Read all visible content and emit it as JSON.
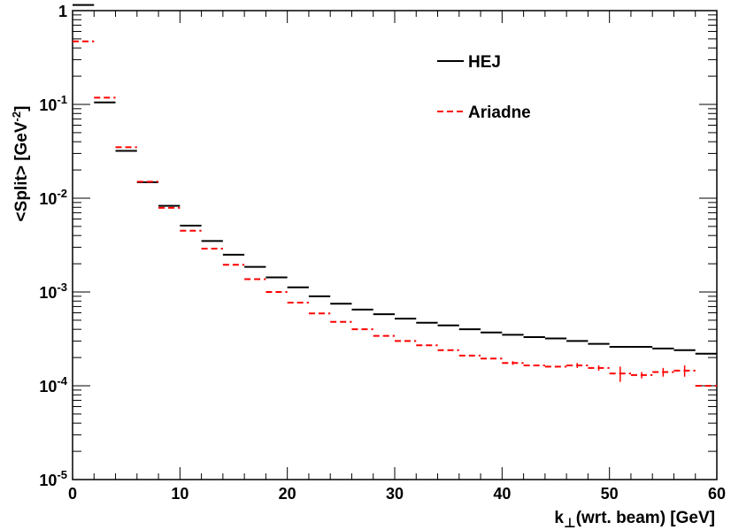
{
  "chart_data": {
    "type": "line",
    "style": "histogram-steps",
    "xlabel": "k",
    "xlabel_sub": "⊥",
    "xlabel_rest": "(wrt. beam) [GeV]",
    "ylabel": "<Split> [GeV",
    "ylabel_sup": "-2",
    "ylabel_close": "]",
    "xlim": [
      0,
      60
    ],
    "ylim": [
      1e-05,
      1
    ],
    "yscale": "log",
    "grid": false,
    "legend_position": "top-right",
    "x_ticks": [
      {
        "v": 0,
        "label": "0"
      },
      {
        "v": 10,
        "label": "10"
      },
      {
        "v": 20,
        "label": "20"
      },
      {
        "v": 30,
        "label": "30"
      },
      {
        "v": 40,
        "label": "40"
      },
      {
        "v": 50,
        "label": "50"
      },
      {
        "v": 60,
        "label": "60"
      }
    ],
    "y_ticks": [
      {
        "v": 1,
        "base": "1",
        "exp": ""
      },
      {
        "v": 0.1,
        "base": "10",
        "exp": "-1"
      },
      {
        "v": 0.01,
        "base": "10",
        "exp": "-2"
      },
      {
        "v": 0.001,
        "base": "10",
        "exp": "-3"
      },
      {
        "v": 0.0001,
        "base": "10",
        "exp": "-4"
      },
      {
        "v": 1e-05,
        "base": "10",
        "exp": "-5"
      }
    ],
    "bin_width": 2,
    "series": [
      {
        "name": "HEJ",
        "color": "#000000",
        "dash": "solid",
        "x": [
          1,
          3,
          5,
          7,
          9,
          11,
          13,
          15,
          17,
          19,
          21,
          23,
          25,
          27,
          29,
          31,
          33,
          35,
          37,
          39,
          41,
          43,
          45,
          47,
          49,
          51,
          53,
          55,
          57,
          59
        ],
        "values": [
          1.5,
          0.105,
          0.032,
          0.0148,
          0.0083,
          0.0051,
          0.0035,
          0.0025,
          0.00185,
          0.00143,
          0.00112,
          0.0009,
          0.00075,
          0.00065,
          0.00058,
          0.00052,
          0.00047,
          0.00044,
          0.0004,
          0.00037,
          0.00035,
          0.00033,
          0.00032,
          0.0003,
          0.00028,
          0.00026,
          0.00026,
          0.00025,
          0.00024,
          0.00022
        ]
      },
      {
        "name": "Ariadne",
        "color": "#ff0000",
        "dash": "dashed",
        "x": [
          1,
          3,
          5,
          7,
          9,
          11,
          13,
          15,
          17,
          19,
          21,
          23,
          25,
          27,
          29,
          31,
          33,
          35,
          37,
          39,
          41,
          43,
          45,
          47,
          49,
          51,
          53,
          55,
          57,
          59
        ],
        "values": [
          0.47,
          0.118,
          0.035,
          0.015,
          0.0079,
          0.0045,
          0.0029,
          0.00195,
          0.00137,
          0.001,
          0.00077,
          0.00059,
          0.00048,
          0.0004,
          0.00034,
          0.0003,
          0.00027,
          0.00024,
          0.00021,
          0.000195,
          0.000175,
          0.000165,
          0.00016,
          0.000165,
          0.000155,
          0.000135,
          0.00013,
          0.00014,
          0.000145,
          0.0001
        ],
        "errors": [
          0,
          0,
          0,
          0,
          0,
          0,
          0,
          0,
          0,
          0,
          0,
          0,
          0,
          0,
          0,
          0,
          0,
          0,
          0,
          0,
          8e-06,
          0,
          0,
          1e-05,
          1e-05,
          2.5e-05,
          1e-05,
          1.5e-05,
          2e-05,
          0
        ]
      }
    ]
  }
}
